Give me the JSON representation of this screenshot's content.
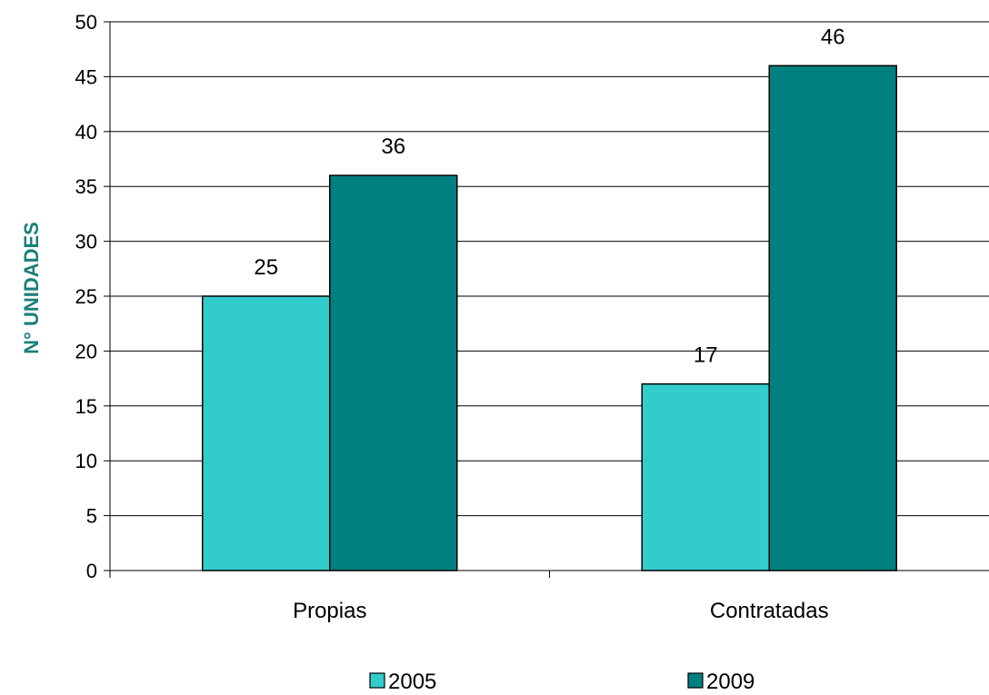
{
  "chart_data": {
    "type": "bar",
    "categories": [
      "Propias",
      "Contratadas"
    ],
    "series": [
      {
        "name": "2005",
        "values": [
          25,
          17
        ],
        "color": "#33CCCC"
      },
      {
        "name": "2009",
        "values": [
          36,
          46
        ],
        "color": "#008080"
      }
    ],
    "title": "",
    "xlabel": "",
    "ylabel": "N° UNIDADES",
    "ylim": [
      0,
      50
    ],
    "yticks": [
      0,
      5,
      10,
      15,
      20,
      25,
      30,
      35,
      40,
      45,
      50
    ],
    "grid": true,
    "legend_position": "bottom",
    "data_labels": true
  }
}
